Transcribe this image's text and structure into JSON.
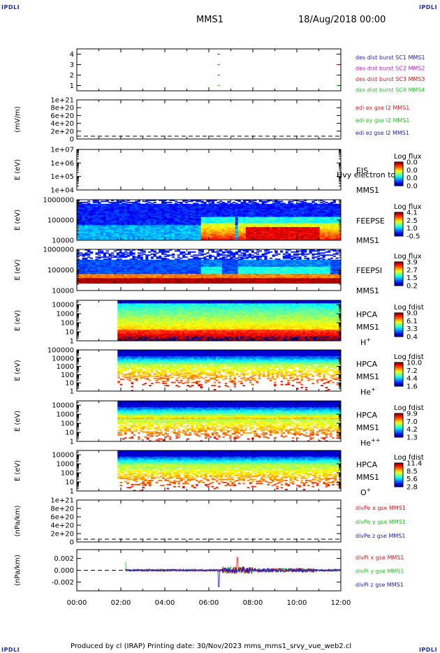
{
  "header": {
    "corner_label": "IPDLI",
    "spacecraft": "MMS1",
    "date": "18/Aug/2018 00:00"
  },
  "footer": {
    "text": "Produced by cl (IRAP)   Printing date: 30/Nov/2023   mms_mms1_srvy_vue_web2.cl"
  },
  "colors": {
    "blue": "#1a1ac8",
    "red": "#d81818",
    "green": "#22c022",
    "magenta": "#c018c0",
    "spec_bg": "#1c1cb0"
  },
  "chart_data": [
    {
      "type": "scatter",
      "ylabel": "",
      "yticks": [
        "1",
        "2",
        "3",
        "4"
      ],
      "ylim": [
        0.5,
        4.5
      ],
      "legend": [
        {
          "label": "des dist burst SC1 MMS1",
          "color": "blue"
        },
        {
          "label": "des dist burst SC2 MMS2",
          "color": "magenta"
        },
        {
          "label": "des dist burst SC3 MMS3",
          "color": "red"
        },
        {
          "label": "des dist burst SC4 MMS4",
          "color": "green"
        }
      ],
      "series": [
        {
          "values": [
            [
              6.4,
              4
            ],
            [
              11.8,
              4
            ]
          ]
        },
        {
          "values": [
            [
              6.4,
              3
            ],
            [
              11.8,
              3
            ]
          ]
        },
        {
          "values": [
            [
              6.4,
              2
            ],
            [
              11.8,
              2
            ]
          ]
        },
        {
          "values": [
            [
              6.4,
              1
            ],
            [
              11.8,
              1
            ]
          ]
        }
      ]
    },
    {
      "type": "line",
      "ylabel": "(mV/m)",
      "yticks": [
        "0",
        "2e+20",
        "4e+20",
        "6e+20",
        "8e+20",
        "1e+21"
      ],
      "ylim": [
        0,
        1e+21
      ],
      "dashed_zero": true,
      "legend": [
        {
          "label": "edi ex gse l2 MMS1",
          "color": "red"
        },
        {
          "label": "edi ey gse l2 MMS1",
          "color": "green"
        },
        {
          "label": "edi ez gse l2 MMS1",
          "color": "blue"
        }
      ]
    },
    {
      "type": "heatmap",
      "ylabel": "E (eV)",
      "yticks": [
        "1e+04",
        "1e+05",
        "1e+06",
        "1e+07"
      ],
      "ylim": [
        10000,
        10000000
      ],
      "scale": "log",
      "empty": true,
      "right_labels": [
        "EIS",
        "MMS1"
      ],
      "overlay_text": "Hvy electron to",
      "colorbar_title": "Log flux",
      "colorbar_ticks": [
        "0.0",
        "0.0",
        "0.0",
        "0.0"
      ]
    },
    {
      "type": "heatmap",
      "ylabel": "E (eV)",
      "yticks": [
        "10000",
        "100000",
        "1000000"
      ],
      "ylim": [
        10000,
        1000000
      ],
      "scale": "log",
      "start": 0,
      "pattern": "feepse",
      "right_labels": [
        "FEEPSE",
        "MMS1"
      ],
      "colorbar_title": "Log flux",
      "colorbar_ticks": [
        "4.1",
        "2.5",
        "1.0",
        "-0.5"
      ]
    },
    {
      "type": "heatmap",
      "ylabel": "E (eV)",
      "yticks": [
        "10000",
        "100000",
        "1000000"
      ],
      "ylim": [
        10000,
        1000000
      ],
      "scale": "log",
      "start": 0,
      "pattern": "feepsi",
      "right_labels": [
        "FEEPSI",
        "MMS1"
      ],
      "colorbar_title": "Log flux",
      "colorbar_ticks": [
        "3.9",
        "2.7",
        "1.5",
        "0.2"
      ]
    },
    {
      "type": "heatmap",
      "ylabel": "E (eV)",
      "yticks": [
        "1",
        "10",
        "100",
        "1000",
        "10000"
      ],
      "ylim": [
        1,
        30000
      ],
      "scale": "log",
      "start": 1.85,
      "pattern": "hplus",
      "right_labels": [
        "HPCA",
        "MMS1",
        "H+"
      ],
      "colorbar_title": "Log fdist",
      "colorbar_ticks": [
        "9.0",
        "6.1",
        "3.3",
        "0.4"
      ]
    },
    {
      "type": "heatmap",
      "ylabel": "E (eV)",
      "yticks": [
        "1",
        "10",
        "100",
        "1000",
        "10000",
        "100000"
      ],
      "ylim": [
        1,
        100000
      ],
      "scale": "log",
      "start": 1.85,
      "pattern": "heplus",
      "right_labels": [
        "HPCA",
        "MMS1",
        "He+"
      ],
      "colorbar_title": "Log fdist",
      "colorbar_ticks": [
        "10.0",
        "7.2",
        "4.4",
        "1.6"
      ]
    },
    {
      "type": "heatmap",
      "ylabel": "E (eV)",
      "yticks": [
        "1",
        "10",
        "100",
        "1000",
        "10000"
      ],
      "ylim": [
        1,
        30000
      ],
      "scale": "log",
      "start": 1.85,
      "pattern": "heplusplus",
      "right_labels": [
        "HPCA",
        "MMS1",
        "He++"
      ],
      "colorbar_title": "Log fdist",
      "colorbar_ticks": [
        "9.9",
        "7.0",
        "4.2",
        "1.3"
      ]
    },
    {
      "type": "heatmap",
      "ylabel": "E (eV)",
      "yticks": [
        "1",
        "10",
        "100",
        "1000",
        "10000"
      ],
      "ylim": [
        1,
        30000
      ],
      "scale": "log",
      "start": 1.85,
      "pattern": "oplus",
      "right_labels": [
        "HPCA",
        "MMS1",
        "O+"
      ],
      "colorbar_title": "Log fdist",
      "colorbar_ticks": [
        "11.4",
        "8.5",
        "5.6",
        "2.8"
      ]
    },
    {
      "type": "line",
      "ylabel": "(nPa/km)",
      "yticks": [
        "0",
        "2e+20",
        "4e+20",
        "6e+20",
        "8e+20",
        "1e+21"
      ],
      "ylim": [
        0,
        1e+21
      ],
      "dashed_zero": true,
      "legend": [
        {
          "label": "divPe x gse MMS1",
          "color": "red"
        },
        {
          "label": "divPe y gse MMS1",
          "color": "green"
        },
        {
          "label": "divPe z gse MMS1",
          "color": "blue"
        }
      ]
    },
    {
      "type": "line",
      "ylabel": "(nPa/km)",
      "yticks": [
        "-0.002",
        "0.000",
        "0.002"
      ],
      "ylim": [
        -0.0035,
        0.0035
      ],
      "dashed_zero": true,
      "noisy": true,
      "start": 2.2,
      "legend": [
        {
          "label": "divPi x gse MMS1",
          "color": "red"
        },
        {
          "label": "divPi y gse MMS1",
          "color": "green"
        },
        {
          "label": "divPi z gse MMS1",
          "color": "blue"
        }
      ]
    }
  ],
  "xaxis": {
    "ticks": [
      "00:00",
      "02:00",
      "04:00",
      "06:00",
      "08:00",
      "10:00",
      "12:00"
    ],
    "range": [
      0,
      12
    ]
  }
}
